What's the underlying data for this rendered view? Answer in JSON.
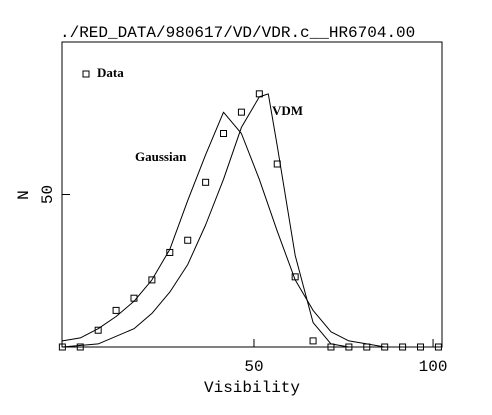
{
  "chart_data": {
    "type": "scatter",
    "title": "./RED_DATA/980617/VD/VDR.c__HR6704.00",
    "x_label": "Visibility",
    "y_label": "N",
    "xlim": [
      -3.6,
      102.5
    ],
    "ylim": [
      0,
      100
    ],
    "xticks": [
      50,
      100
    ],
    "yticks": [
      50
    ],
    "series": [
      {
        "name": "Data",
        "kind": "points",
        "color": "#000000",
        "x": [
          -3.5,
          1.5,
          6.5,
          11.5,
          16.5,
          21.5,
          26.5,
          31.5,
          36.5,
          41.5,
          46.5,
          51.5,
          56.5,
          61.5,
          66.5,
          71.5,
          76.5,
          81.5,
          86.5,
          91.5,
          96.5,
          101.5
        ],
        "values": [
          0,
          0,
          5.5,
          12,
          16,
          22,
          31,
          35,
          54,
          70,
          77,
          83,
          60,
          23,
          2,
          0,
          0,
          0,
          0,
          0,
          0,
          0
        ]
      },
      {
        "name": "Gaussian",
        "kind": "line",
        "color": "#000000",
        "x": [
          -3.5,
          1.5,
          6.5,
          11.5,
          16.5,
          21.5,
          26.5,
          31.5,
          36.5,
          41.5,
          46.5,
          51.5,
          56.5,
          61.5,
          66.5,
          71.5,
          76.5,
          81.5,
          86.5,
          101.5
        ],
        "values": [
          2,
          3,
          6,
          10,
          15,
          22,
          32,
          48,
          63,
          77,
          70,
          55,
          38,
          22,
          12,
          5,
          2,
          1,
          0,
          0
        ]
      },
      {
        "name": "VDM",
        "kind": "line",
        "color": "#000000",
        "x": [
          -3.5,
          6.5,
          16.5,
          21.5,
          26.5,
          31.5,
          36.5,
          41.5,
          46.5,
          51.5,
          54,
          56.5,
          61.5,
          66.5,
          71.5,
          76.5,
          101.5
        ],
        "values": [
          0,
          1,
          6,
          11,
          18,
          27,
          40,
          55,
          72,
          82,
          83,
          66,
          30,
          8,
          1,
          0,
          0
        ]
      }
    ]
  }
}
